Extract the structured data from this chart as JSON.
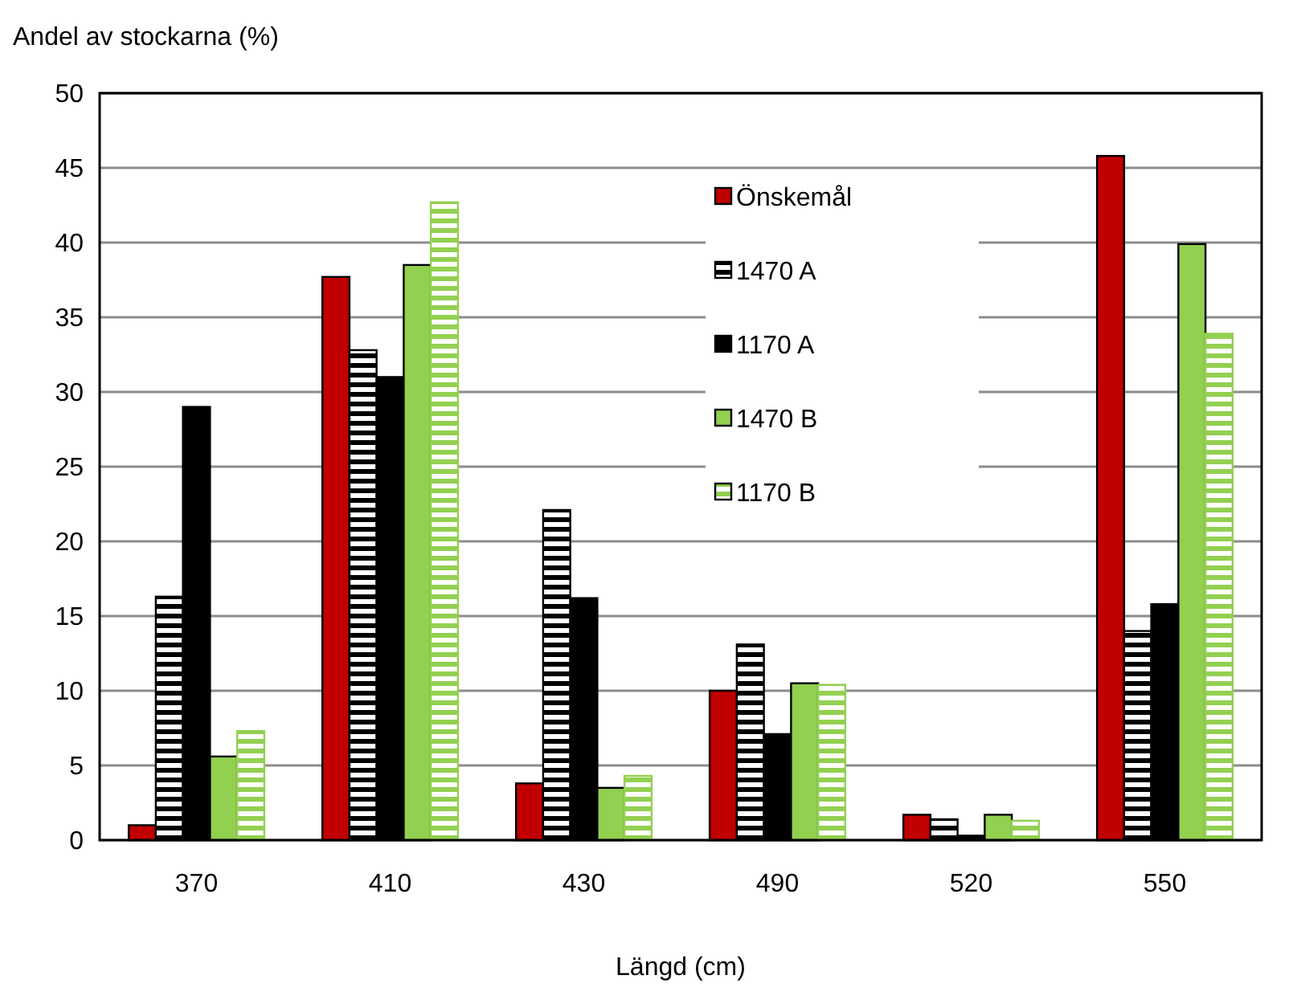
{
  "chart_data": {
    "type": "bar",
    "ylabel": "Andel av stockarna (%)",
    "xlabel": "Längd (cm)",
    "categories": [
      "370",
      "410",
      "430",
      "490",
      "520",
      "550"
    ],
    "series": [
      {
        "name": "Önskemål",
        "color": "#c00000",
        "values": [
          1.0,
          37.7,
          3.8,
          10.0,
          1.7,
          45.8
        ]
      },
      {
        "name": "1470 A",
        "color": "#000000",
        "values": [
          16.3,
          32.8,
          22.1,
          13.1,
          1.4,
          14.0
        ]
      },
      {
        "name": "1170 A",
        "color": "#000000",
        "values": [
          29.0,
          31.0,
          16.2,
          7.1,
          0.3,
          15.8
        ]
      },
      {
        "name": "1470 B",
        "color": "#92d050",
        "values": [
          5.6,
          38.5,
          3.5,
          10.5,
          1.7,
          39.9
        ]
      },
      {
        "name": "1170 B",
        "color": "#92d050",
        "values": [
          7.3,
          42.7,
          4.3,
          10.4,
          1.3,
          33.9
        ]
      }
    ],
    "ylim": [
      0,
      50
    ],
    "yticks": [
      0,
      5,
      10,
      15,
      20,
      25,
      30,
      35,
      40,
      45,
      50
    ],
    "grid": "y",
    "legend": "top right"
  }
}
